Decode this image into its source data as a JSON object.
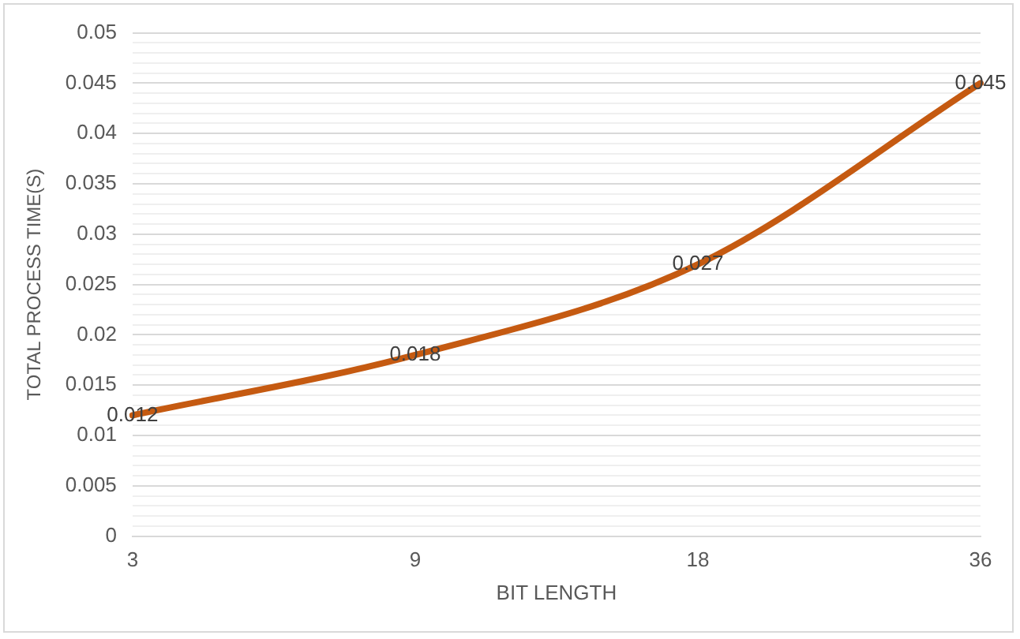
{
  "chart_data": {
    "type": "line",
    "xlabel": "BIT LENGTH",
    "ylabel": "TOTAL PROCESS TIME(S)",
    "categories": [
      "3",
      "9",
      "18",
      "36"
    ],
    "series": [
      {
        "color": "#c55a11",
        "values": [
          0.012,
          0.018,
          0.027,
          0.045
        ]
      }
    ],
    "data_labels": true,
    "marker": "none",
    "line_style": "solid",
    "grid": "y",
    "legend": false,
    "ylim": [
      0,
      0.05
    ],
    "yticks": [
      0,
      {
        "value": 0.001,
        "label": null
      },
      {
        "value": 0.002,
        "label": null
      },
      {
        "value": 0.003,
        "label": null
      },
      {
        "value": 0.004,
        "label": null
      },
      0.005,
      {
        "value": 0.006,
        "label": null
      },
      {
        "value": 0.007,
        "label": null
      },
      {
        "value": 0.008,
        "label": null
      },
      {
        "value": 0.009,
        "label": null
      },
      0.01,
      {
        "value": 0.011,
        "label": null
      },
      {
        "value": 0.012,
        "label": null
      },
      {
        "value": 0.013,
        "label": null
      },
      {
        "value": 0.014,
        "label": null
      },
      0.015,
      {
        "value": 0.016,
        "label": null
      },
      {
        "value": 0.017,
        "label": null
      },
      {
        "value": 0.018,
        "label": null
      },
      {
        "value": 0.019,
        "label": null
      },
      0.02,
      {
        "value": 0.021,
        "label": null
      },
      {
        "value": 0.022,
        "label": null
      },
      {
        "value": 0.023,
        "label": null
      },
      {
        "value": 0.024,
        "label": null
      },
      0.025,
      {
        "value": 0.026,
        "label": null
      },
      {
        "value": 0.027,
        "label": null
      },
      {
        "value": 0.028,
        "label": null
      },
      {
        "value": 0.029,
        "label": null
      },
      0.03,
      {
        "value": 0.031,
        "label": null
      },
      {
        "value": 0.032,
        "label": null
      },
      {
        "value": 0.033,
        "label": null
      },
      {
        "value": 0.034,
        "label": null
      },
      0.035,
      {
        "value": 0.036,
        "label": null
      },
      {
        "value": 0.037,
        "label": null
      },
      {
        "value": 0.038,
        "label": null
      },
      {
        "value": 0.039,
        "label": null
      },
      0.04,
      {
        "value": 0.041,
        "label": null
      },
      {
        "value": 0.042,
        "label": null
      },
      {
        "value": 0.043,
        "label": null
      },
      {
        "value": 0.044,
        "label": null
      },
      0.045,
      {
        "value": 0.046,
        "label": null
      },
      {
        "value": 0.047,
        "label": null
      },
      {
        "value": 0.048,
        "label": null
      },
      {
        "value": 0.049,
        "label": null
      },
      0.05
    ]
  }
}
